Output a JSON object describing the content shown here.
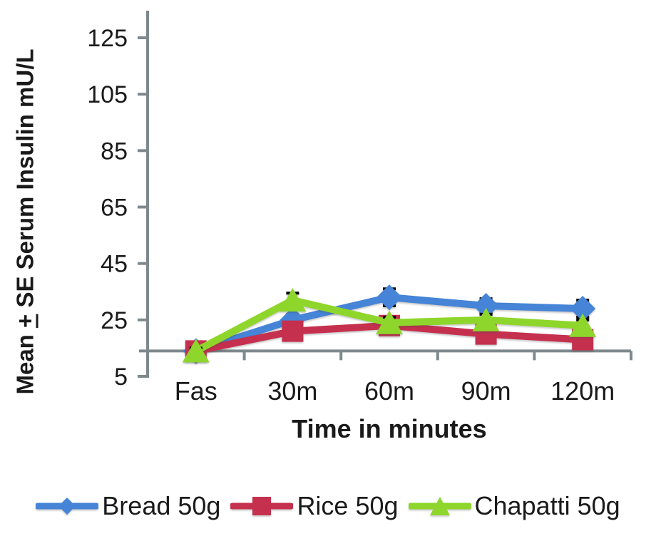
{
  "chart_data": {
    "type": "line",
    "categories": [
      "Fas",
      "30m",
      "60m",
      "90m",
      "120m"
    ],
    "series": [
      {
        "name": "Bread 50g",
        "color": "#4584d6",
        "marker": "diamond",
        "values": [
          14,
          25,
          33,
          30,
          29
        ],
        "se": [
          1,
          2,
          3,
          2.5,
          3
        ]
      },
      {
        "name": "Rice 50g",
        "color": "#c5304e",
        "marker": "square",
        "values": [
          14,
          21,
          23,
          20,
          18
        ],
        "se": [
          1,
          1.5,
          1.5,
          1.5,
          1.5
        ]
      },
      {
        "name": "Chapatti 50g",
        "color": "#8ed62c",
        "marker": "triangle",
        "values": [
          14,
          32,
          24,
          25,
          23
        ],
        "se": [
          1,
          2.5,
          2,
          2,
          2
        ]
      }
    ],
    "xlabel": "Time in minutes",
    "ylabel": "Mean + SE Serum Insulin mU/L",
    "ylabel_parts": {
      "prefix": "Mean ",
      "plus_underlined": "+",
      "rest": " SE Serum Insulin mU/L"
    },
    "y_ticks": [
      125,
      105,
      85,
      65,
      45,
      25,
      5
    ],
    "ylim": [
      5,
      134
    ],
    "axis_crosses_at": 14,
    "axis_color": "#7d898d",
    "error_bar_color": "#000000",
    "text_color": "#1a1a1a",
    "legend_position": "bottom",
    "grid": false
  }
}
